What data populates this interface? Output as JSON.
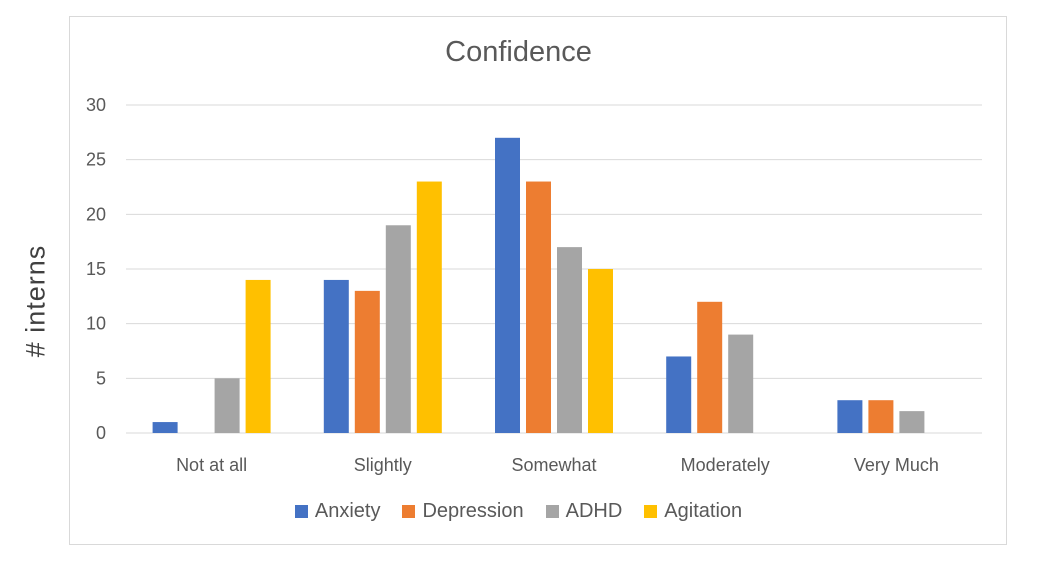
{
  "chart_data": {
    "type": "bar",
    "title": "Confidence",
    "ylabel": "# interns",
    "xlabel": "",
    "ylim": [
      0,
      30
    ],
    "yticks": [
      0,
      5,
      10,
      15,
      20,
      25,
      30
    ],
    "grid": true,
    "legend_position": "bottom",
    "categories": [
      "Not at all",
      "Slightly",
      "Somewhat",
      "Moderately",
      "Very Much"
    ],
    "series": [
      {
        "name": "Anxiety",
        "color": "#4472c4",
        "values": [
          1,
          14,
          27,
          7,
          3
        ]
      },
      {
        "name": "Depression",
        "color": "#ed7d31",
        "values": [
          0,
          13,
          23,
          12,
          3
        ]
      },
      {
        "name": "ADHD",
        "color": "#a5a5a5",
        "values": [
          5,
          19,
          17,
          9,
          2
        ]
      },
      {
        "name": "Agitation",
        "color": "#ffc000",
        "values": [
          14,
          23,
          15,
          0,
          0
        ]
      }
    ]
  }
}
